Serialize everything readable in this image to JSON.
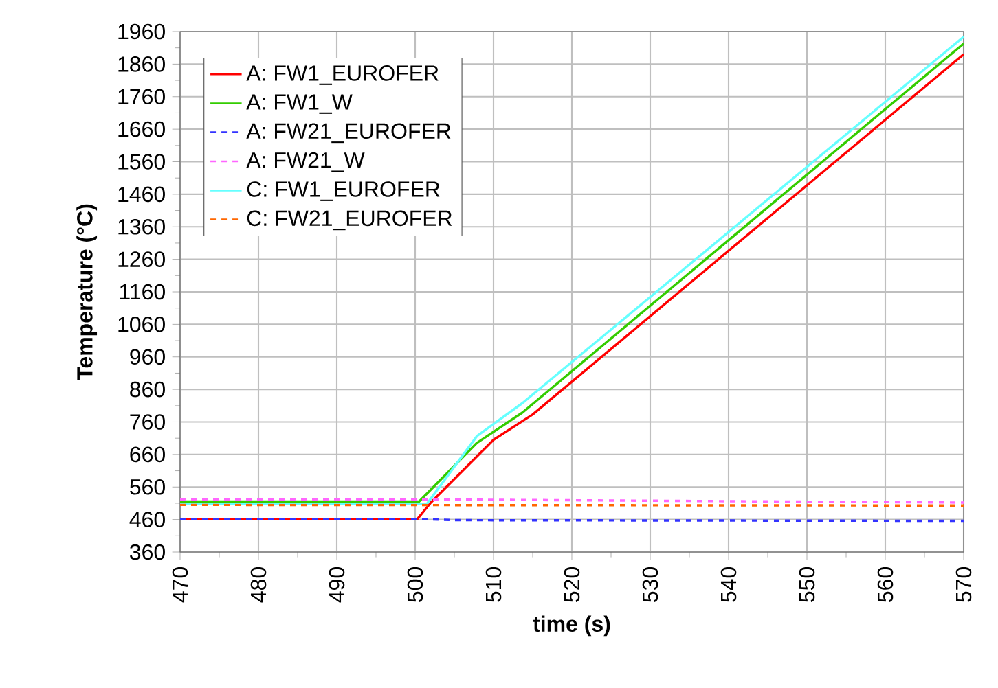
{
  "chart_data": {
    "type": "line",
    "xlabel": "time (s)",
    "ylabel": "Temperature (°C)",
    "xlim": [
      470,
      570
    ],
    "xticks": [
      470,
      480,
      490,
      500,
      510,
      520,
      530,
      540,
      550,
      560,
      570
    ],
    "ylim": [
      360,
      1960
    ],
    "yticks": [
      360,
      460,
      560,
      660,
      760,
      860,
      960,
      1060,
      1160,
      1260,
      1360,
      1460,
      1560,
      1660,
      1760,
      1860,
      1960
    ],
    "grid": true,
    "legend": "top left",
    "series": [
      {
        "name": "A: FW1_EUROFER",
        "color": "#ff0000",
        "line_style": "solid",
        "x": [
          470,
          500.3,
          502,
          510,
          515,
          570
        ],
        "values": [
          462,
          462,
          512,
          705,
          783,
          1890
        ]
      },
      {
        "name": "A: FW1_W",
        "color": "#33cc00",
        "line_style": "solid",
        "x": [
          470,
          500.5,
          507.9,
          513.7,
          570
        ],
        "values": [
          515,
          515,
          696,
          789,
          1923
        ]
      },
      {
        "name": "A: FW21_EUROFER",
        "color": "#3333ff",
        "line_style": "dashed",
        "x": [
          470,
          500,
          505,
          570
        ],
        "values": [
          462,
          462,
          458,
          456
        ]
      },
      {
        "name": "A: FW21_W",
        "color": "#ff66ff",
        "line_style": "dashed",
        "x": [
          470,
          500,
          570
        ],
        "values": [
          522,
          522,
          512
        ]
      },
      {
        "name": "C: FW1_EUROFER",
        "color": "#66ffff",
        "line_style": "solid",
        "x": [
          470,
          501.5,
          507.9,
          513.7,
          570
        ],
        "values": [
          508,
          508,
          717,
          818,
          1944
        ]
      },
      {
        "name": "C: FW21_EUROFER",
        "color": "#ff6600",
        "line_style": "dashed",
        "x": [
          470,
          570
        ],
        "values": [
          505,
          503
        ]
      }
    ]
  }
}
